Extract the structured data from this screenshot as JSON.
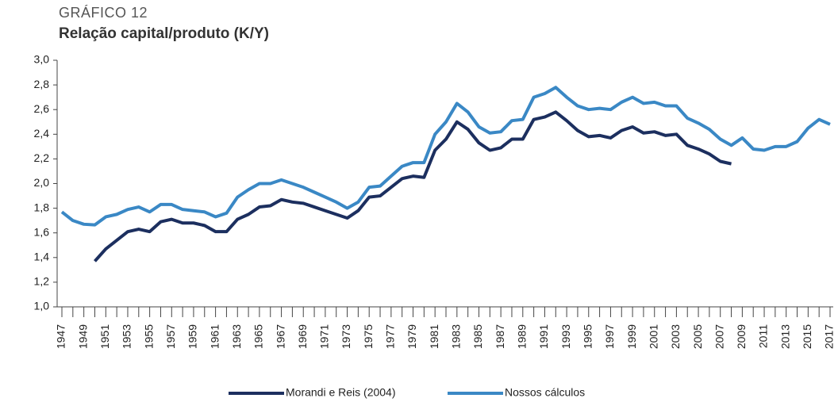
{
  "chart_data": {
    "type": "line",
    "supertitle": "GRÁFICO 12",
    "title": "Relação capital/produto (K/Y)",
    "x": [
      1947,
      1948,
      1949,
      1950,
      1951,
      1952,
      1953,
      1954,
      1955,
      1956,
      1957,
      1958,
      1959,
      1960,
      1961,
      1962,
      1963,
      1964,
      1965,
      1966,
      1967,
      1968,
      1969,
      1970,
      1971,
      1972,
      1973,
      1974,
      1975,
      1976,
      1977,
      1978,
      1979,
      1980,
      1981,
      1982,
      1983,
      1984,
      1985,
      1986,
      1987,
      1988,
      1989,
      1990,
      1991,
      1992,
      1993,
      1994,
      1995,
      1996,
      1997,
      1998,
      1999,
      2000,
      2001,
      2002,
      2003,
      2004,
      2005,
      2006,
      2007,
      2008,
      2009,
      2010,
      2011,
      2012,
      2013,
      2014,
      2015,
      2016,
      2017
    ],
    "xlim": [
      1947,
      2017
    ],
    "xticks": [
      1947,
      1949,
      1951,
      1953,
      1955,
      1957,
      1959,
      1961,
      1963,
      1965,
      1967,
      1969,
      1971,
      1973,
      1975,
      1977,
      1979,
      1981,
      1983,
      1985,
      1987,
      1989,
      1991,
      1993,
      1995,
      1997,
      1999,
      2001,
      2003,
      2005,
      2007,
      2009,
      2011,
      2013,
      2015,
      2017
    ],
    "ylim": [
      1,
      3
    ],
    "yticks": [
      {
        "value": 1,
        "label": "1,0"
      },
      {
        "value": 1.2,
        "label": "1,2"
      },
      {
        "value": 1.4,
        "label": "1,4"
      },
      {
        "value": 1.6,
        "label": "1,6"
      },
      {
        "value": 1.8,
        "label": "1,8"
      },
      {
        "value": 2,
        "label": "2,0"
      },
      {
        "value": 2.2,
        "label": "2,2"
      },
      {
        "value": 2.4,
        "label": "2,4"
      },
      {
        "value": 2.6,
        "label": "2,6"
      },
      {
        "value": 2.8,
        "label": "2,8"
      },
      {
        "value": 3,
        "label": "3,0"
      }
    ],
    "grid": false,
    "legend": "bottom",
    "series": [
      {
        "name": "Morandi e Reis (2004)",
        "color": "#1c2f5f",
        "values": [
          null,
          null,
          null,
          1.37,
          1.47,
          1.54,
          1.61,
          1.63,
          1.61,
          1.69,
          1.71,
          1.68,
          1.68,
          1.66,
          1.61,
          1.61,
          1.71,
          1.75,
          1.81,
          1.82,
          1.87,
          1.85,
          1.84,
          1.81,
          1.78,
          1.75,
          1.72,
          1.78,
          1.89,
          1.9,
          1.97,
          2.04,
          2.06,
          2.05,
          2.27,
          2.36,
          2.5,
          2.44,
          2.33,
          2.27,
          2.29,
          2.36,
          2.36,
          2.52,
          2.54,
          2.58,
          2.51,
          2.43,
          2.38,
          2.39,
          2.37,
          2.43,
          2.46,
          2.41,
          2.42,
          2.39,
          2.4,
          2.31,
          2.28,
          2.24,
          2.18,
          2.16,
          null,
          null,
          null,
          null,
          null,
          null,
          null,
          null,
          null
        ]
      },
      {
        "name": "Nossos cálculos",
        "color": "#3a88c5",
        "values": [
          1.77,
          1.7,
          1.67,
          1.665,
          1.73,
          1.75,
          1.79,
          1.81,
          1.77,
          1.83,
          1.83,
          1.79,
          1.78,
          1.77,
          1.73,
          1.76,
          1.89,
          1.95,
          2.0,
          2.0,
          2.03,
          2.0,
          1.97,
          1.93,
          1.89,
          1.85,
          1.8,
          1.85,
          1.97,
          1.98,
          2.06,
          2.14,
          2.17,
          2.17,
          2.4,
          2.5,
          2.65,
          2.58,
          2.46,
          2.41,
          2.42,
          2.51,
          2.52,
          2.7,
          2.73,
          2.78,
          2.7,
          2.63,
          2.6,
          2.61,
          2.6,
          2.66,
          2.7,
          2.65,
          2.66,
          2.63,
          2.63,
          2.53,
          2.49,
          2.44,
          2.36,
          2.31,
          2.37,
          2.28,
          2.27,
          2.3,
          2.3,
          2.34,
          2.45,
          2.52,
          2.48
        ]
      }
    ]
  }
}
